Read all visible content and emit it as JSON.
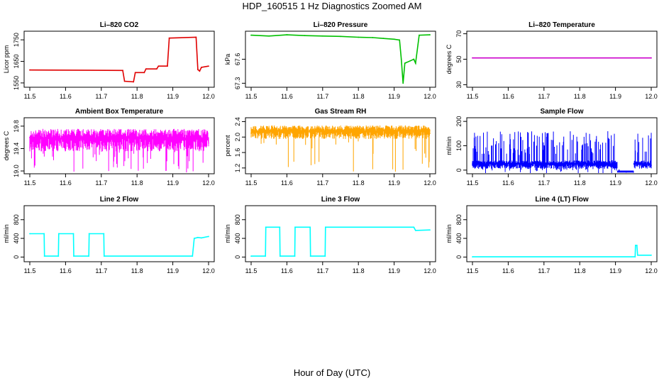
{
  "page": {
    "title": "HDP_160515  1 Hz Diagnostics Zoomed AM",
    "xlabel": "Hour of Day (UTC)"
  },
  "chart_data": [
    {
      "type": "line",
      "title": "Li–820 CO2",
      "ylabel": "Licor ppm",
      "color": "#e00000",
      "xlim": [
        11.5,
        12.0
      ],
      "ylim": [
        1530,
        1790
      ],
      "xticks": [
        11.5,
        11.6,
        11.7,
        11.8,
        11.9,
        12.0
      ],
      "xtick_labels": [
        "11.5",
        "11.6",
        "11.7",
        "11.8",
        "11.9",
        "12.0"
      ],
      "yticks": [
        1550,
        1650,
        1750
      ],
      "ytick_labels": [
        "1550",
        "1650",
        "1750"
      ],
      "x": [
        11.5,
        11.76,
        11.765,
        11.79,
        11.795,
        11.82,
        11.825,
        11.855,
        11.86,
        11.885,
        11.89,
        11.965,
        11.97,
        11.975,
        11.98,
        12.0
      ],
      "y": [
        1610,
        1608,
        1558,
        1555,
        1598,
        1598,
        1615,
        1615,
        1628,
        1628,
        1758,
        1762,
        1612,
        1605,
        1622,
        1628
      ]
    },
    {
      "type": "line",
      "title": "Li–820 Pressure",
      "ylabel": "kPa",
      "color": "#00c000",
      "xlim": [
        11.5,
        12.0
      ],
      "ylim": [
        67.25,
        67.95
      ],
      "xticks": [
        11.5,
        11.6,
        11.7,
        11.8,
        11.9,
        12.0
      ],
      "xtick_labels": [
        "11.5",
        "11.6",
        "11.7",
        "11.8",
        "11.9",
        "12.0"
      ],
      "yticks": [
        67.3,
        67.6
      ],
      "ytick_labels": [
        "67.3",
        "67.6"
      ],
      "x": [
        11.5,
        11.55,
        11.6,
        11.65,
        11.7,
        11.75,
        11.8,
        11.84,
        11.87,
        11.9,
        11.915,
        11.92,
        11.925,
        11.93,
        11.945,
        11.955,
        11.96,
        11.97,
        12.0
      ],
      "y": [
        67.9,
        67.89,
        67.905,
        67.895,
        67.89,
        67.885,
        67.875,
        67.87,
        67.86,
        67.85,
        67.84,
        67.6,
        67.3,
        67.55,
        67.58,
        67.6,
        67.55,
        67.9,
        67.905
      ]
    },
    {
      "type": "line",
      "title": "Li–820 Temperature",
      "ylabel": "degrees C",
      "color": "#cc00cc",
      "xlim": [
        11.5,
        12.0
      ],
      "ylim": [
        28,
        72
      ],
      "xticks": [
        11.5,
        11.6,
        11.7,
        11.8,
        11.9,
        12.0
      ],
      "xtick_labels": [
        "11.5",
        "11.6",
        "11.7",
        "11.8",
        "11.9",
        "12.0"
      ],
      "yticks": [
        30,
        50,
        70
      ],
      "ytick_labels": [
        "30",
        "50",
        "70"
      ],
      "x": [
        11.5,
        12.0
      ],
      "y": [
        51,
        51
      ]
    },
    {
      "type": "line",
      "title": "Ambient Box Temperature",
      "ylabel": "degrees C",
      "color": "#ff00ff",
      "xlim": [
        11.5,
        12.0
      ],
      "ylim": [
        18.95,
        19.95
      ],
      "xticks": [
        11.5,
        11.6,
        11.7,
        11.8,
        11.9,
        12.0
      ],
      "xtick_labels": [
        "11.5",
        "11.6",
        "11.7",
        "11.8",
        "11.9",
        "12.0"
      ],
      "yticks": [
        19.0,
        19.4,
        19.8
      ],
      "ytick_labels": [
        "19.0",
        "19.4",
        "19.8"
      ],
      "x": [
        11.5,
        11.6,
        11.7,
        11.8,
        11.9,
        12.0
      ],
      "y": [
        19.6,
        19.55,
        19.5,
        19.5,
        19.5,
        19.5
      ],
      "band": [
        19.35,
        19.75
      ]
    },
    {
      "type": "line",
      "title": "Gas Stream RH",
      "ylabel": "percent",
      "color": "#ffa500",
      "xlim": [
        11.5,
        12.0
      ],
      "ylim": [
        1.05,
        2.5
      ],
      "xticks": [
        11.5,
        11.6,
        11.7,
        11.8,
        11.9,
        12.0
      ],
      "xtick_labels": [
        "11.5",
        "11.6",
        "11.7",
        "11.8",
        "11.9",
        "12.0"
      ],
      "yticks": [
        1.2,
        1.6,
        2.0,
        2.4
      ],
      "ytick_labels": [
        "1.2",
        "1.6",
        "2.0",
        "2.4"
      ],
      "x": [
        11.5,
        11.6,
        11.7,
        11.8,
        11.9,
        12.0
      ],
      "y": [
        2.1,
        2.12,
        2.1,
        2.1,
        2.1,
        2.1
      ],
      "band": [
        1.95,
        2.3
      ]
    },
    {
      "type": "line",
      "title": "Sample Flow",
      "ylabel": "ml/min",
      "color": "#0000ff",
      "xlim": [
        11.5,
        12.0
      ],
      "ylim": [
        -15,
        215
      ],
      "xticks": [
        11.5,
        11.6,
        11.7,
        11.8,
        11.9,
        12.0
      ],
      "xtick_labels": [
        "11.5",
        "11.6",
        "11.7",
        "11.8",
        "11.9",
        "12.0"
      ],
      "yticks": [
        0,
        100,
        200
      ],
      "ytick_labels": [
        "0",
        "100",
        "200"
      ],
      "x": [
        11.5,
        11.7,
        11.9,
        11.91,
        11.93,
        11.95,
        11.96,
        12.0
      ],
      "y": [
        25,
        25,
        25,
        0,
        -8,
        -8,
        20,
        20
      ],
      "band": [
        5,
        40
      ]
    },
    {
      "type": "line",
      "title": "Line 2 Flow",
      "ylabel": "ml/min",
      "color": "#00ffff",
      "xlim": [
        11.5,
        12.0
      ],
      "ylim": [
        -100,
        1100
      ],
      "xticks": [
        11.5,
        11.6,
        11.7,
        11.8,
        11.9,
        12.0
      ],
      "xtick_labels": [
        "11.5",
        "11.6",
        "11.7",
        "11.8",
        "11.9",
        "12.0"
      ],
      "yticks": [
        0,
        400,
        800
      ],
      "ytick_labels": [
        "0",
        "400",
        "800"
      ],
      "x": [
        11.5,
        11.54,
        11.541,
        11.58,
        11.581,
        11.622,
        11.623,
        11.665,
        11.666,
        11.707,
        11.708,
        11.955,
        11.96,
        11.97,
        11.98,
        12.0
      ],
      "y": [
        500,
        500,
        20,
        20,
        500,
        500,
        20,
        20,
        500,
        500,
        20,
        20,
        400,
        420,
        410,
        440
      ]
    },
    {
      "type": "line",
      "title": "Line 3 Flow",
      "ylabel": "ml/min",
      "color": "#00ffff",
      "xlim": [
        11.5,
        12.0
      ],
      "ylim": [
        -100,
        1100
      ],
      "xticks": [
        11.5,
        11.6,
        11.7,
        11.8,
        11.9,
        12.0
      ],
      "xtick_labels": [
        "11.5",
        "11.6",
        "11.7",
        "11.8",
        "11.9",
        "12.0"
      ],
      "yticks": [
        0,
        400,
        800
      ],
      "ytick_labels": [
        "0",
        "400",
        "800"
      ],
      "x": [
        11.5,
        11.54,
        11.541,
        11.58,
        11.581,
        11.622,
        11.623,
        11.665,
        11.666,
        11.707,
        11.708,
        11.955,
        11.96,
        12.0
      ],
      "y": [
        20,
        20,
        640,
        640,
        20,
        20,
        640,
        640,
        20,
        20,
        640,
        640,
        570,
        580
      ]
    },
    {
      "type": "line",
      "title": "Line 4 (LT) Flow",
      "ylabel": "ml/min",
      "color": "#00ffff",
      "xlim": [
        11.5,
        12.0
      ],
      "ylim": [
        -100,
        1100
      ],
      "xticks": [
        11.5,
        11.6,
        11.7,
        11.8,
        11.9,
        12.0
      ],
      "xtick_labels": [
        "11.5",
        "11.6",
        "11.7",
        "11.8",
        "11.9",
        "12.0"
      ],
      "yticks": [
        0,
        400,
        800
      ],
      "ytick_labels": [
        "0",
        "400",
        "800"
      ],
      "x": [
        11.5,
        11.955,
        11.956,
        11.96,
        11.962,
        12.0
      ],
      "y": [
        5,
        5,
        250,
        250,
        40,
        40
      ]
    }
  ]
}
